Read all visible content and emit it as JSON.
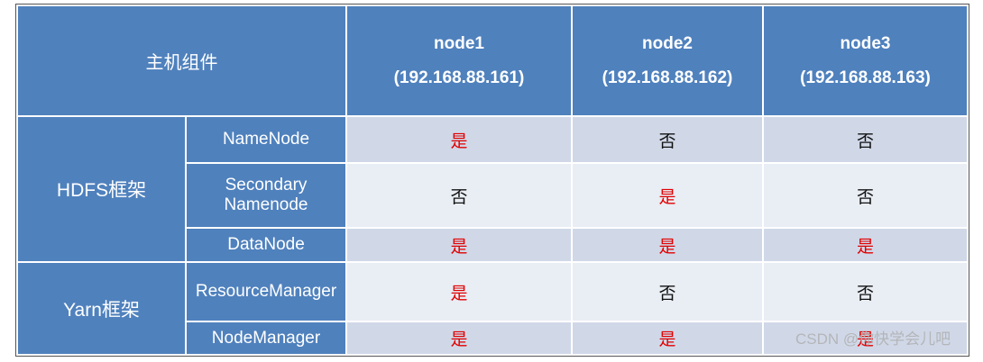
{
  "header": {
    "title": "主机组件",
    "nodes": [
      {
        "name": "node1",
        "ip": "(192.168.88.161)"
      },
      {
        "name": "node2",
        "ip": "(192.168.88.162)"
      },
      {
        "name": "node3",
        "ip": "(192.168.88.163)"
      }
    ]
  },
  "groups": [
    {
      "label": "HDFS框架",
      "rows": [
        {
          "component": "NameNode",
          "values": [
            "是",
            "否",
            "否"
          ]
        },
        {
          "component": "Secondary Namenode",
          "values": [
            "否",
            "是",
            "否"
          ]
        },
        {
          "component": "DataNode",
          "values": [
            "是",
            "是",
            "是"
          ]
        }
      ]
    },
    {
      "label": "Yarn框架",
      "rows": [
        {
          "component": "ResourceManager",
          "values": [
            "是",
            "否",
            "否"
          ]
        },
        {
          "component": "NodeManager",
          "values": [
            "是",
            "是",
            "是"
          ]
        }
      ]
    }
  ],
  "watermark": "CSDN @你快学会儿吧"
}
